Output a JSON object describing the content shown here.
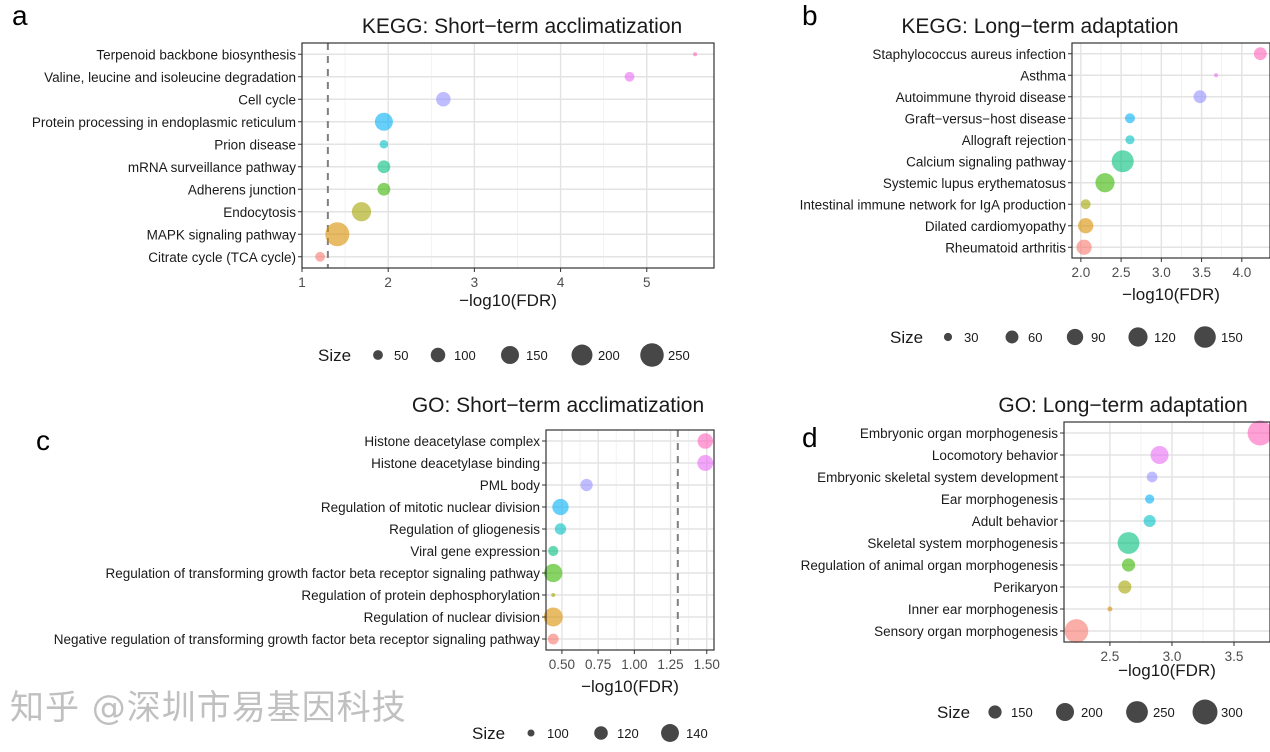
{
  "watermark": "知乎 @深圳市易基因科技",
  "chart_data": [
    {
      "panel": "a",
      "type": "scatter",
      "title": "KEGG: Short−term acclimatization",
      "xlabel": "−log10(FDR)",
      "xlim": [
        1,
        5.78
      ],
      "xticks": [
        1,
        2,
        3,
        4,
        5
      ],
      "xtick_labels": [
        "1",
        "2",
        "3",
        "4",
        "5"
      ],
      "threshold": 1.3,
      "grid": true,
      "legend": {
        "title": "Size",
        "values": [
          50,
          100,
          150,
          200,
          250
        ],
        "placement": "bottom"
      },
      "categories": [
        "Terpenoid backbone biosynthesis",
        "Valine, leucine and isoleucine degradation",
        "Cell cycle",
        "Protein processing in endoplasmic reticulum",
        "Prion disease",
        "mRNA surveillance pathway",
        "Adherens junction",
        "Endocytosis",
        "MAPK signaling pathway",
        "Citrate cycle (TCA cycle)"
      ],
      "x": [
        5.56,
        4.8,
        2.64,
        1.95,
        1.95,
        1.95,
        1.95,
        1.69,
        1.41,
        1.21
      ],
      "size": [
        15,
        50,
        100,
        150,
        40,
        80,
        80,
        170,
        260,
        50
      ]
    },
    {
      "panel": "b",
      "type": "scatter",
      "title": "KEGG: Long−term adaptation",
      "xlabel": "−log10(FDR)",
      "xlim": [
        1.89,
        4.35
      ],
      "xticks": [
        2.0,
        2.5,
        3.0,
        3.5,
        4.0
      ],
      "xtick_labels": [
        "2.0",
        "2.5",
        "3.0",
        "3.5",
        "4.0"
      ],
      "grid": true,
      "legend": {
        "title": "Size",
        "values": [
          30,
          60,
          90,
          120,
          150
        ],
        "placement": "bottom"
      },
      "categories": [
        "Staphylococcus aureus infection",
        "Asthma",
        "Autoimmune thyroid disease",
        "Graft−versus−host disease",
        "Allograft rejection",
        "Calcium signaling pathway",
        "Systemic lupus erythematosus",
        "Intestinal immune network for IgA production",
        "Dilated cardiomyopathy",
        "Rheumatoid arthritis"
      ],
      "x": [
        4.23,
        3.68,
        3.48,
        2.61,
        2.61,
        2.52,
        2.3,
        2.06,
        2.06,
        2.04
      ],
      "size": [
        60,
        15,
        60,
        40,
        35,
        155,
        120,
        40,
        80,
        80
      ]
    },
    {
      "panel": "c",
      "type": "scatter",
      "title": "GO: Short−term acclimatization",
      "xlabel": "−log10(FDR)",
      "xlim": [
        0.39,
        1.55
      ],
      "xticks": [
        0.5,
        0.75,
        1.0,
        1.25,
        1.5
      ],
      "xtick_labels": [
        "0.50",
        "0.75",
        "1.00",
        "1.25",
        "1.50"
      ],
      "threshold": 1.3,
      "grid": true,
      "legend": {
        "title": "Size",
        "values": [
          100,
          120,
          140
        ],
        "placement": "bottom"
      },
      "categories": [
        "Histone deacetylase complex",
        "Histone deacetylase binding",
        "PML body",
        "Regulation of mitotic nuclear division",
        "Regulation of gliogenesis",
        "Viral gene expression",
        "Regulation of transforming growth factor beta receptor signaling pathway",
        "Regulation of protein dephosphorylation",
        "Regulation of nuclear division",
        "Negative regulation of transforming growth factor beta receptor signaling pathway"
      ],
      "x": [
        1.49,
        1.49,
        0.67,
        0.49,
        0.49,
        0.44,
        0.44,
        0.44,
        0.44,
        0.44
      ],
      "size": [
        128,
        130,
        115,
        132,
        112,
        108,
        142,
        95,
        146,
        110
      ]
    },
    {
      "panel": "d",
      "type": "scatter",
      "title": "GO: Long−term adaptation",
      "xlabel": "−log10(FDR)",
      "xlim": [
        2.13,
        3.79
      ],
      "xticks": [
        2.5,
        3.0,
        3.5
      ],
      "xtick_labels": [
        "2.5",
        "3.0",
        "3.5"
      ],
      "grid": true,
      "legend": {
        "title": "Size",
        "values": [
          150,
          200,
          250,
          300
        ],
        "placement": "bottom"
      },
      "categories": [
        "Embryonic organ morphogenesis",
        "Locomotory behavior",
        "Embryonic skeletal system development",
        "Ear morphogenesis",
        "Adult behavior",
        "Skeletal system morphogenesis",
        "Regulation of animal organ morphogenesis",
        "Perikaryon",
        "Inner ear morphogenesis",
        "Sensory organ morphogenesis"
      ],
      "x": [
        3.71,
        2.9,
        2.84,
        2.82,
        2.82,
        2.65,
        2.65,
        2.62,
        2.5,
        2.23
      ],
      "size": [
        300,
        200,
        130,
        120,
        140,
        250,
        150,
        150,
        100,
        280
      ]
    }
  ],
  "colors": [
    "#FF62BC",
    "#E76BF3",
    "#9590FF",
    "#00B0F6",
    "#00BFC4",
    "#00BF7D",
    "#39B600",
    "#A3A500",
    "#D89000",
    "#F8766D"
  ]
}
